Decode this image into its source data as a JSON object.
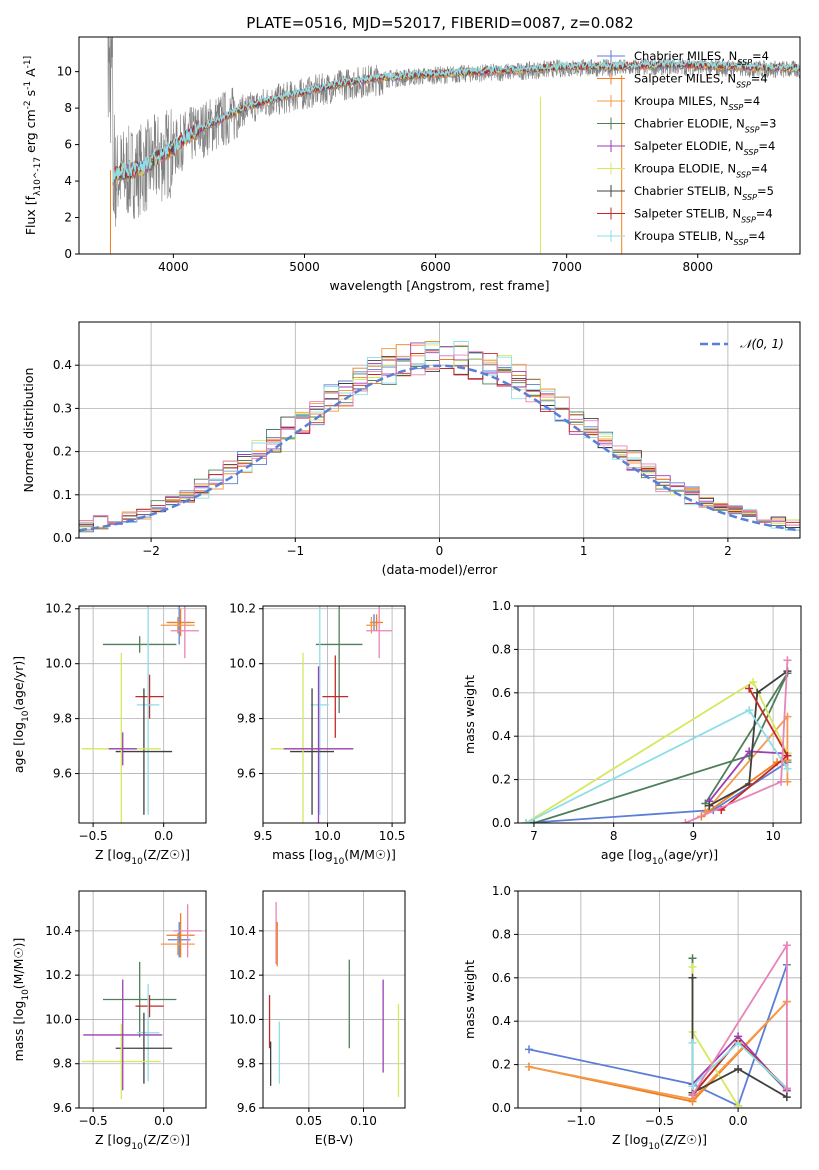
{
  "figure": {
    "title": "PLATE=0516, MJD=52017, FIBERID=0087, z=0.082"
  },
  "colors": {
    "c1": "#5b7fd6",
    "c2": "#f07f1e",
    "c3": "#f59a4a",
    "c4": "#4f7f5a",
    "c5": "#9b3fb5",
    "c6": "#d6e85c",
    "c7": "#404040",
    "c8": "#c62828",
    "c9": "#8fdde6",
    "c10": "#e884b8",
    "obs": "#808080"
  },
  "chart_data": [
    {
      "id": "spectrum",
      "type": "line",
      "xlabel": "wavelength [Angstrom, rest frame]",
      "ylabel": "Flux [f_λ10^-17 erg cm^-2 s^-1 A^-1]",
      "xlim": [
        3280,
        8780
      ],
      "ylim": [
        0,
        11.9
      ],
      "xticks": [
        4000,
        5000,
        6000,
        7000,
        8000
      ],
      "yticks": [
        0,
        2,
        4,
        6,
        8,
        10
      ],
      "grid": false,
      "legend": "right",
      "series": [
        {
          "name": "Chabrier MILES, N_SSP=4",
          "color": "c1"
        },
        {
          "name": "Salpeter MILES, N_SSP=4",
          "color": "c2"
        },
        {
          "name": "Kroupa MILES, N_SSP=4",
          "color": "c3"
        },
        {
          "name": "Chabrier ELODIE, N_SSP=3",
          "color": "c4"
        },
        {
          "name": "Salpeter ELODIE, N_SSP=4",
          "color": "c5"
        },
        {
          "name": "Kroupa ELODIE, N_SSP=4",
          "color": "c6"
        },
        {
          "name": "Chabrier STELIB, N_SSP=5",
          "color": "c7"
        },
        {
          "name": "Salpeter STELIB, N_SSP=4",
          "color": "c8"
        },
        {
          "name": "Kroupa STELIB, N_SSP=4",
          "color": "c9"
        }
      ],
      "model_continuum": [
        [
          3540,
          4.2
        ],
        [
          3600,
          4.4
        ],
        [
          3700,
          4.5
        ],
        [
          3800,
          4.8
        ],
        [
          3900,
          5.3
        ],
        [
          4000,
          5.7
        ],
        [
          4100,
          6.4
        ],
        [
          4300,
          7.1
        ],
        [
          4500,
          7.8
        ],
        [
          4700,
          8.3
        ],
        [
          5000,
          8.8
        ],
        [
          5300,
          9.3
        ],
        [
          5600,
          9.6
        ],
        [
          6000,
          9.8
        ],
        [
          6300,
          9.9
        ],
        [
          6600,
          10.0
        ],
        [
          7000,
          10.2
        ],
        [
          7400,
          10.2
        ],
        [
          7800,
          10.3
        ],
        [
          8200,
          10.2
        ],
        [
          8800,
          10.1
        ]
      ],
      "observed_range": [
        3500,
        8780
      ]
    },
    {
      "id": "residuals",
      "type": "line",
      "xlabel": "(data-model)/error",
      "ylabel": "Normed distribution",
      "xlim": [
        -2.5,
        2.5
      ],
      "ylim": [
        0,
        0.5
      ],
      "xticks": [
        -2,
        -1,
        0,
        1,
        2
      ],
      "yticks": [
        0.0,
        0.1,
        0.2,
        0.3,
        0.4
      ],
      "grid": true,
      "legend": "top-right",
      "gaussian": {
        "name": "𝒩(0, 1)",
        "mu": 0,
        "sigma": 1,
        "color": "c1"
      },
      "histogram_bin_width": 0.1
    },
    {
      "id": "age-vs-z",
      "type": "scatter",
      "xlabel": "Z [log10(Z/Z☉)]",
      "ylabel": "age  [log10(age/yr)]",
      "xlim": [
        -0.6,
        0.3
      ],
      "ylim": [
        9.42,
        10.21
      ],
      "xticks": [
        -0.5,
        0.0
      ],
      "yticks": [
        9.6,
        9.8,
        10.0,
        10.2
      ],
      "grid": true,
      "points": [
        {
          "color": "c1",
          "x": 0.11,
          "y": 10.15,
          "xerr": 0.08,
          "yerr": 0.08
        },
        {
          "color": "c2",
          "x": 0.12,
          "y": 10.15,
          "xerr": 0.1,
          "yerr": 0.05
        },
        {
          "color": "c3",
          "x": 0.1,
          "y": 10.14,
          "xerr": 0.12,
          "yerr": 0.03
        },
        {
          "color": "c4",
          "x": -0.17,
          "y": 10.07,
          "xerr": 0.26,
          "yerr": 0.03
        },
        {
          "color": "c10",
          "x": 0.15,
          "y": 10.12,
          "xerr": 0.1,
          "yerr": 0.1
        },
        {
          "color": "c8",
          "x": -0.1,
          "y": 9.88,
          "xerr": 0.1,
          "yerr": 0.08
        },
        {
          "color": "c9",
          "x": -0.11,
          "y": 9.85,
          "xerr": 0.08,
          "yerr": 0.4
        },
        {
          "color": "c7",
          "x": -0.14,
          "y": 9.68,
          "xerr": 0.2,
          "yerr": 0.23
        },
        {
          "color": "c6",
          "x": -0.3,
          "y": 9.69,
          "xerr": 0.28,
          "yerr": 0.35
        },
        {
          "color": "c5",
          "x": -0.29,
          "y": 9.69,
          "xerr": 0.1,
          "yerr": 0.06
        }
      ]
    },
    {
      "id": "age-vs-mass",
      "type": "scatter",
      "xlabel": "mass [log10(M/M☉)]",
      "ylabel": "",
      "xlim": [
        9.5,
        10.6
      ],
      "ylim": [
        9.42,
        10.21
      ],
      "xticks": [
        9.5,
        10.0,
        10.5
      ],
      "yticks": [
        9.6,
        9.8,
        10.0,
        10.2
      ],
      "grid": true,
      "points": [
        {
          "color": "c1",
          "x": 10.36,
          "y": 10.15,
          "xerr": 0.03,
          "yerr": 0.03
        },
        {
          "color": "c2",
          "x": 10.38,
          "y": 10.15,
          "xerr": 0.05,
          "yerr": 0.03
        },
        {
          "color": "c3",
          "x": 10.34,
          "y": 10.14,
          "xerr": 0.04,
          "yerr": 0.03
        },
        {
          "color": "c4",
          "x": 10.09,
          "y": 10.07,
          "xerr": 0.18,
          "yerr": 0.25
        },
        {
          "color": "c10",
          "x": 10.4,
          "y": 10.12,
          "xerr": 0.1,
          "yerr": 0.1
        },
        {
          "color": "c8",
          "x": 10.06,
          "y": 9.88,
          "xerr": 0.1,
          "yerr": 0.15
        },
        {
          "color": "c9",
          "x": 9.94,
          "y": 9.85,
          "xerr": 0.07,
          "yerr": 0.4
        },
        {
          "color": "c7",
          "x": 9.88,
          "y": 9.68,
          "xerr": 0.17,
          "yerr": 0.23
        },
        {
          "color": "c6",
          "x": 9.81,
          "y": 9.69,
          "xerr": 0.25,
          "yerr": 0.35
        },
        {
          "color": "c5",
          "x": 9.93,
          "y": 9.69,
          "xerr": 0.27,
          "yerr": 0.3
        }
      ]
    },
    {
      "id": "mass-weight-vs-age",
      "type": "line",
      "xlabel": "age  [log10(age/yr)]",
      "ylabel": "mass weight",
      "xlim": [
        6.8,
        10.35
      ],
      "ylim": [
        0,
        1
      ],
      "xticks": [
        7,
        8,
        9,
        10
      ],
      "yticks": [
        0.0,
        0.2,
        0.4,
        0.6,
        0.8,
        1.0
      ],
      "grid": true,
      "series": [
        {
          "color": "c1",
          "x": [
            6.9,
            9.25,
            10.18
          ],
          "y": [
            0.0,
            0.06,
            0.28
          ]
        },
        {
          "color": "c2",
          "x": [
            9.1,
            10.05,
            10.18
          ],
          "y": [
            0.03,
            0.28,
            0.29
          ]
        },
        {
          "color": "c3",
          "x": [
            9.15,
            10.18,
            10.18
          ],
          "y": [
            0.05,
            0.49,
            0.19
          ]
        },
        {
          "color": "c4",
          "x": [
            7.0,
            9.7,
            10.18,
            9.15
          ],
          "y": [
            0.0,
            0.31,
            0.69,
            0.09
          ]
        },
        {
          "color": "c5",
          "x": [
            9.2,
            9.7,
            10.18
          ],
          "y": [
            0.1,
            0.33,
            0.32
          ]
        },
        {
          "color": "c6",
          "x": [
            6.9,
            9.75,
            10.18
          ],
          "y": [
            0.0,
            0.65,
            0.32
          ]
        },
        {
          "color": "c7",
          "x": [
            9.2,
            9.7,
            9.8,
            10.18
          ],
          "y": [
            0.08,
            0.18,
            0.6,
            0.7
          ]
        },
        {
          "color": "c8",
          "x": [
            9.35,
            10.18,
            9.7
          ],
          "y": [
            0.06,
            0.31,
            0.62
          ]
        },
        {
          "color": "c9",
          "x": [
            6.9,
            9.7,
            10.18
          ],
          "y": [
            0.0,
            0.52,
            0.25
          ]
        },
        {
          "color": "c10",
          "x": [
            8.9,
            10.1,
            10.18
          ],
          "y": [
            0.0,
            0.19,
            0.75
          ]
        }
      ]
    },
    {
      "id": "mass-vs-z",
      "type": "scatter",
      "xlabel": "Z [log10(Z/Z☉)]",
      "ylabel": "mass [log10(M/M☉)]",
      "xlim": [
        -0.6,
        0.3
      ],
      "ylim": [
        9.6,
        10.58
      ],
      "xticks": [
        -0.5,
        0.0
      ],
      "yticks": [
        9.6,
        9.8,
        10.0,
        10.2,
        10.4
      ],
      "grid": true,
      "points": [
        {
          "color": "c1",
          "x": 0.11,
          "y": 10.36,
          "xerr": 0.08,
          "yerr": 0.08
        },
        {
          "color": "c2",
          "x": 0.12,
          "y": 10.38,
          "xerr": 0.1,
          "yerr": 0.1
        },
        {
          "color": "c3",
          "x": 0.1,
          "y": 10.34,
          "xerr": 0.12,
          "yerr": 0.05
        },
        {
          "color": "c4",
          "x": -0.17,
          "y": 10.09,
          "xerr": 0.26,
          "yerr": 0.17
        },
        {
          "color": "c10",
          "x": 0.17,
          "y": 10.4,
          "xerr": 0.1,
          "yerr": 0.12
        },
        {
          "color": "c8",
          "x": -0.1,
          "y": 10.06,
          "xerr": 0.1,
          "yerr": 0.05
        },
        {
          "color": "c9",
          "x": -0.11,
          "y": 9.94,
          "xerr": 0.08,
          "yerr": 0.22
        },
        {
          "color": "c7",
          "x": -0.14,
          "y": 9.87,
          "xerr": 0.2,
          "yerr": 0.16
        },
        {
          "color": "c6",
          "x": -0.3,
          "y": 9.81,
          "xerr": 0.28,
          "yerr": 0.17
        },
        {
          "color": "c5",
          "x": -0.29,
          "y": 9.93,
          "xerr": 0.28,
          "yerr": 0.25
        }
      ]
    },
    {
      "id": "mass-vs-ebv",
      "type": "scatter",
      "xlabel": "E(B-V)",
      "ylabel": "",
      "xlim": [
        0.008,
        0.138
      ],
      "ylim": [
        9.6,
        10.58
      ],
      "xticks": [
        0.05,
        0.1
      ],
      "yticks": [
        9.6,
        9.8,
        10.0,
        10.2,
        10.4
      ],
      "grid": true,
      "points": [
        {
          "color": "c8",
          "x": 0.014,
          "y": 9.99,
          "yerr": 0.12
        },
        {
          "color": "c7",
          "x": 0.015,
          "y": 9.8,
          "yerr": 0.1
        },
        {
          "color": "c10",
          "x": 0.02,
          "y": 10.39,
          "yerr": 0.14
        },
        {
          "color": "c2",
          "x": 0.021,
          "y": 10.34,
          "yerr": 0.1
        },
        {
          "color": "c9",
          "x": 0.023,
          "y": 9.85,
          "yerr": 0.14
        },
        {
          "color": "c4",
          "x": 0.087,
          "y": 10.07,
          "yerr": 0.2
        },
        {
          "color": "c5",
          "x": 0.118,
          "y": 9.97,
          "yerr": 0.21
        },
        {
          "color": "c6",
          "x": 0.132,
          "y": 9.86,
          "yerr": 0.21
        }
      ]
    },
    {
      "id": "mass-weight-vs-z",
      "type": "line",
      "xlabel": "Z [log10(Z/Z☉)]",
      "ylabel": "mass weight",
      "xlim": [
        -1.4,
        0.4
      ],
      "ylim": [
        0,
        1
      ],
      "xticks": [
        -1.0,
        -0.5,
        0.0
      ],
      "yticks": [
        0.0,
        0.2,
        0.4,
        0.6,
        0.8,
        1.0
      ],
      "grid": true,
      "series": [
        {
          "color": "c1",
          "x": [
            -1.33,
            -0.29,
            0.0,
            0.31
          ],
          "y": [
            0.27,
            0.11,
            0.01,
            0.66
          ]
        },
        {
          "color": "c2",
          "x": [
            -1.33,
            -0.29,
            0.31
          ],
          "y": [
            0.19,
            0.03,
            0.49
          ]
        },
        {
          "color": "c3",
          "x": [
            -1.33,
            -0.29,
            0.31
          ],
          "y": [
            0.19,
            0.04,
            0.49
          ]
        },
        {
          "color": "c4",
          "x": [
            -0.29,
            -0.29,
            0.0,
            0.31
          ],
          "y": [
            0.69,
            0.06,
            0.31,
            0.08
          ]
        },
        {
          "color": "c5",
          "x": [
            -0.29,
            0.0,
            0.31
          ],
          "y": [
            0.11,
            0.33,
            0.08
          ]
        },
        {
          "color": "c6",
          "x": [
            -0.29,
            -0.29,
            0.0
          ],
          "y": [
            0.65,
            0.35,
            0.01
          ]
        },
        {
          "color": "c7",
          "x": [
            -0.29,
            -0.29,
            0.0,
            0.31
          ],
          "y": [
            0.6,
            0.07,
            0.18,
            0.05
          ]
        },
        {
          "color": "c8",
          "x": [
            -0.29,
            0.0,
            0.31
          ],
          "y": [
            0.06,
            0.31,
            0.09
          ]
        },
        {
          "color": "c9",
          "x": [
            -0.29,
            -0.29,
            0.0,
            0.31
          ],
          "y": [
            0.3,
            0.1,
            0.3,
            0.09
          ]
        },
        {
          "color": "c10",
          "x": [
            -0.29,
            0.31,
            0.31
          ],
          "y": [
            0.06,
            0.75,
            0.09
          ]
        }
      ]
    }
  ]
}
